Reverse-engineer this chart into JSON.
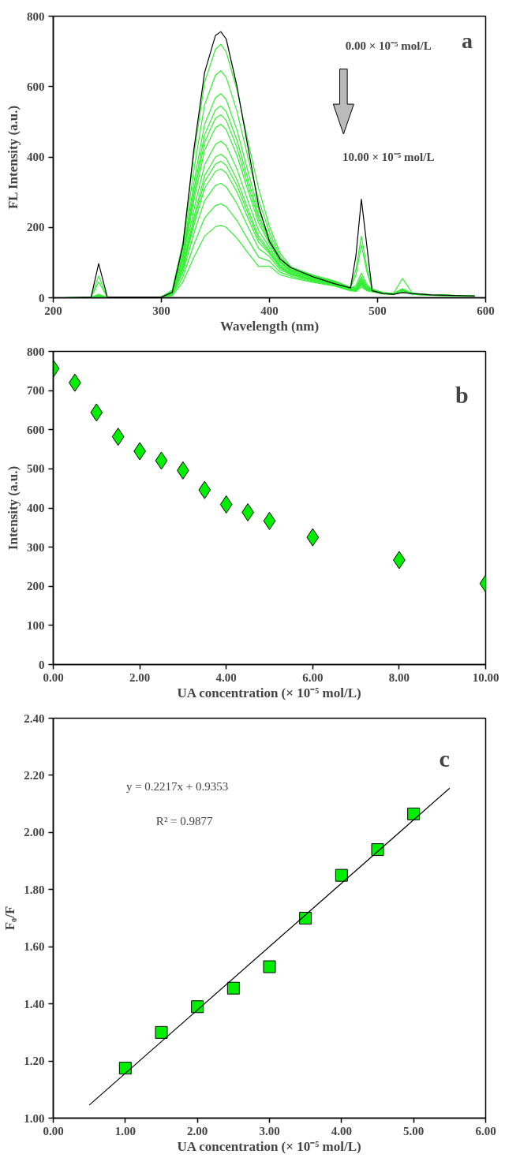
{
  "chart_data": [
    {
      "type": "line",
      "xlabel": "Wavelength (nm)",
      "ylabel": "FL Intensity (a.u.)",
      "annotations": [
        "0.00 × 10⁻⁵ mol/L",
        "10.00 × 10⁻⁵ mol/L",
        "a"
      ],
      "x": [
        210,
        235,
        242,
        250,
        300,
        310,
        320,
        330,
        340,
        350,
        355,
        360,
        370,
        380,
        390,
        400,
        410,
        420,
        440,
        460,
        475,
        480,
        485,
        490,
        495,
        505,
        515,
        523,
        532,
        550,
        590
      ],
      "xlim": [
        200,
        600
      ],
      "ylim": [
        0,
        800
      ],
      "xticks": [
        200,
        300,
        400,
        500,
        600
      ],
      "yticks": [
        0,
        200,
        400,
        600,
        800
      ],
      "grid": false,
      "series": [
        {
          "color": "#000000",
          "values": [
            0,
            2,
            97,
            2,
            2,
            15,
            150,
            420,
            640,
            745,
            756,
            735,
            600,
            430,
            260,
            160,
            110,
            85,
            60,
            40,
            28,
            120,
            280,
            150,
            20,
            12,
            10,
            15,
            12,
            8,
            5
          ]
        },
        {
          "color": "#33ee33",
          "values": [
            0,
            1,
            62,
            1,
            2,
            22,
            158,
            403,
            612,
            706,
            720,
            698,
            590,
            446,
            310,
            203,
            126,
            88,
            65,
            48,
            30,
            80,
            175,
            88,
            25,
            15,
            12,
            20,
            12,
            8,
            5
          ]
        },
        {
          "color": "#33ee33",
          "values": [
            0,
            1,
            45,
            1,
            2,
            19,
            142,
            361,
            548,
            632,
            645,
            626,
            529,
            400,
            277,
            187,
            117,
            84,
            63,
            47,
            29,
            65,
            150,
            75,
            24,
            15,
            12,
            22,
            12,
            8,
            5
          ]
        },
        {
          "color": "#33ee33",
          "values": [
            0,
            1,
            10,
            1,
            2,
            17,
            128,
            325,
            493,
            568,
            580,
            563,
            476,
            360,
            249,
            173,
            110,
            80,
            62,
            46,
            28,
            35,
            70,
            38,
            23,
            14,
            12,
            25,
            12,
            8,
            5
          ]
        },
        {
          "color": "#33ee33",
          "values": [
            0,
            1,
            8,
            1,
            2,
            16,
            120,
            305,
            463,
            534,
            545,
            529,
            447,
            338,
            234,
            165,
            105,
            78,
            60,
            45,
            27,
            30,
            60,
            33,
            22,
            14,
            12,
            25,
            12,
            8,
            5
          ]
        },
        {
          "color": "#33ee33",
          "values": [
            0,
            1,
            6,
            1,
            2,
            16,
            114,
            291,
            442,
            510,
            520,
            504,
            426,
            322,
            224,
            159,
            102,
            76,
            58,
            44,
            26,
            28,
            55,
            30,
            22,
            14,
            11,
            22,
            11,
            8,
            5
          ]
        },
        {
          "color": "#33ee33",
          "values": [
            0,
            1,
            5,
            1,
            2,
            15,
            108,
            276,
            419,
            483,
            493,
            478,
            404,
            306,
            212,
            153,
            99,
            75,
            57,
            43,
            26,
            26,
            50,
            28,
            21,
            13,
            11,
            20,
            11,
            8,
            5
          ]
        },
        {
          "color": "#33ee33",
          "values": [
            0,
            1,
            5,
            1,
            2,
            13,
            98,
            249,
            378,
            436,
            445,
            432,
            365,
            276,
            191,
            143,
            93,
            72,
            55,
            42,
            25,
            25,
            48,
            27,
            21,
            13,
            11,
            20,
            11,
            8,
            5
          ]
        },
        {
          "color": "#33ee33",
          "values": [
            0,
            1,
            4,
            1,
            2,
            12,
            90,
            228,
            347,
            400,
            408,
            396,
            335,
            253,
            175,
            135,
            89,
            69,
            53,
            40,
            24,
            24,
            45,
            26,
            20,
            13,
            11,
            25,
            11,
            8,
            5
          ]
        },
        {
          "color": "#33ee33",
          "values": [
            0,
            1,
            4,
            1,
            2,
            12,
            85,
            217,
            330,
            380,
            388,
            376,
            318,
            241,
            167,
            130,
            87,
            68,
            52,
            39,
            24,
            23,
            42,
            25,
            20,
            12,
            10,
            22,
            10,
            7,
            5
          ]
        },
        {
          "color": "#33ee33",
          "values": [
            0,
            1,
            3,
            1,
            2,
            11,
            81,
            205,
            311,
            359,
            366,
            355,
            300,
            227,
            157,
            126,
            84,
            67,
            50,
            38,
            23,
            22,
            40,
            24,
            19,
            12,
            10,
            20,
            10,
            7,
            5
          ]
        },
        {
          "color": "#33ee33",
          "values": [
            0,
            1,
            3,
            1,
            2,
            10,
            72,
            182,
            276,
            319,
            325,
            315,
            267,
            202,
            140,
            117,
            79,
            65,
            48,
            37,
            22,
            21,
            38,
            23,
            19,
            12,
            14,
            55,
            14,
            7,
            5
          ]
        },
        {
          "color": "#33ee33",
          "values": [
            0,
            1,
            2,
            1,
            2,
            8,
            59,
            150,
            227,
            262,
            267,
            259,
            219,
            166,
            115,
            104,
            72,
            61,
            46,
            35,
            21,
            20,
            35,
            22,
            18,
            11,
            10,
            20,
            10,
            7,
            5
          ]
        },
        {
          "color": "#33ee33",
          "values": [
            0,
            1,
            2,
            1,
            2,
            6,
            45,
            115,
            175,
            202,
            206,
            200,
            169,
            128,
            89,
            90,
            65,
            57,
            44,
            33,
            20,
            18,
            30,
            20,
            17,
            11,
            10,
            18,
            10,
            7,
            5
          ]
        }
      ]
    },
    {
      "type": "scatter",
      "marker": "diamond",
      "xlabel": "UA concentration (× 10⁻⁵ mol/L)",
      "ylabel": "Intensity (a.u.)",
      "annotations": [
        "b"
      ],
      "x": [
        0,
        0.5,
        1,
        1.5,
        2,
        2.5,
        3,
        3.5,
        4,
        4.5,
        5,
        6,
        8,
        10
      ],
      "xlim": [
        0,
        10
      ],
      "ylim": [
        0,
        800
      ],
      "grid": false,
      "xticks": [
        {
          "value": 0,
          "label": "0.00"
        },
        {
          "value": 2,
          "label": "2.00"
        },
        {
          "value": 4,
          "label": "4.00"
        },
        {
          "value": 6,
          "label": "6.00"
        },
        {
          "value": 8,
          "label": "8.00"
        },
        {
          "value": 10,
          "label": "10.00"
        }
      ],
      "yticks": [
        0,
        100,
        200,
        300,
        400,
        500,
        600,
        700,
        800
      ],
      "series": [
        {
          "color": "#00ee00",
          "values": [
            756,
            720,
            644,
            582,
            545,
            521,
            496,
            446,
            409,
            389,
            367,
            325,
            267,
            207
          ]
        }
      ]
    },
    {
      "type": "scatter",
      "marker": "square",
      "xlabel": "UA concentration (× 10⁻⁵ mol/L)",
      "ylabel": "F₀/F",
      "annotations": [
        "y = 0.2217x + 0.9353",
        "R² = 0.9877",
        "c"
      ],
      "x": [
        1,
        1.5,
        2,
        2.5,
        3,
        3.5,
        4,
        4.5,
        5
      ],
      "xlim": [
        0,
        6
      ],
      "ylim": [
        1,
        2.4
      ],
      "grid": false,
      "xticks": [
        {
          "value": 0,
          "label": "0.00"
        },
        {
          "value": 1,
          "label": "1.00"
        },
        {
          "value": 2,
          "label": "2.00"
        },
        {
          "value": 3,
          "label": "3.00"
        },
        {
          "value": 4,
          "label": "4.00"
        },
        {
          "value": 5,
          "label": "5.00"
        },
        {
          "value": 6,
          "label": "6.00"
        }
      ],
      "yticks": [
        {
          "value": 1,
          "label": "1.00"
        },
        {
          "value": 1.2,
          "label": "1.20"
        },
        {
          "value": 1.4,
          "label": "1.40"
        },
        {
          "value": 1.6,
          "label": "1.60"
        },
        {
          "value": 1.8,
          "label": "1.80"
        },
        {
          "value": 2,
          "label": "2.00"
        },
        {
          "value": 2.2,
          "label": "2.20"
        },
        {
          "value": 2.4,
          "label": "2.40"
        }
      ],
      "series": [
        {
          "color": "#00ee00",
          "values": [
            1.175,
            1.3,
            1.39,
            1.455,
            1.53,
            1.7,
            1.85,
            1.94,
            2.065
          ]
        },
        {
          "type": "line",
          "marker": "none",
          "color": "#000000",
          "x": [
            0.5,
            5.5
          ],
          "values": [
            1.046,
            2.155
          ]
        }
      ]
    }
  ]
}
